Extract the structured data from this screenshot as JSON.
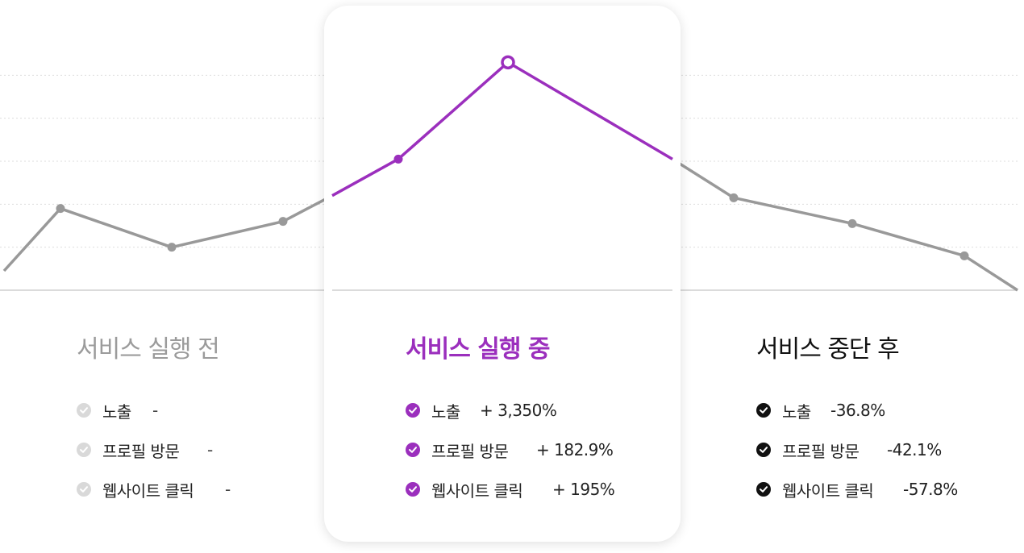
{
  "colors": {
    "gray_line": "#999999",
    "purple": "#9b2fbd",
    "grid": "#dddddd",
    "axis": "#cfcfcf"
  },
  "chart_data": {
    "type": "line",
    "title": "",
    "xlabel": "",
    "ylabel": "",
    "grid": true,
    "ylim": [
      0,
      6
    ],
    "x": [
      0,
      1,
      2,
      3,
      4,
      5,
      6,
      7,
      8,
      9,
      10,
      11
    ],
    "series": [
      {
        "values": [
          0.45,
          1.9,
          1.0,
          1.6,
          2.2,
          3.05,
          5.3,
          3.05,
          2.15,
          1.55,
          0.8,
          0.0
        ],
        "color_segments": "gray-purple-gray"
      }
    ]
  },
  "panels": {
    "before": {
      "title": "서비스 실행 전",
      "metrics": [
        {
          "label": "노출",
          "value": "-"
        },
        {
          "label": "프로필 방문",
          "value": "-"
        },
        {
          "label": "웹사이트 클릭",
          "value": "-"
        }
      ]
    },
    "during": {
      "title": "서비스 실행 중",
      "metrics": [
        {
          "label": "노출",
          "value": "+ 3,350%"
        },
        {
          "label": "프로필 방문",
          "value": "+ 182.9%"
        },
        {
          "label": "웹사이트 클릭",
          "value": "+ 195%"
        }
      ]
    },
    "after": {
      "title": "서비스 중단 후",
      "metrics": [
        {
          "label": "노출",
          "value": "-36.8%"
        },
        {
          "label": "프로필 방문",
          "value": "-42.1%"
        },
        {
          "label": "웹사이트 클릭",
          "value": "-57.8%"
        }
      ]
    }
  }
}
